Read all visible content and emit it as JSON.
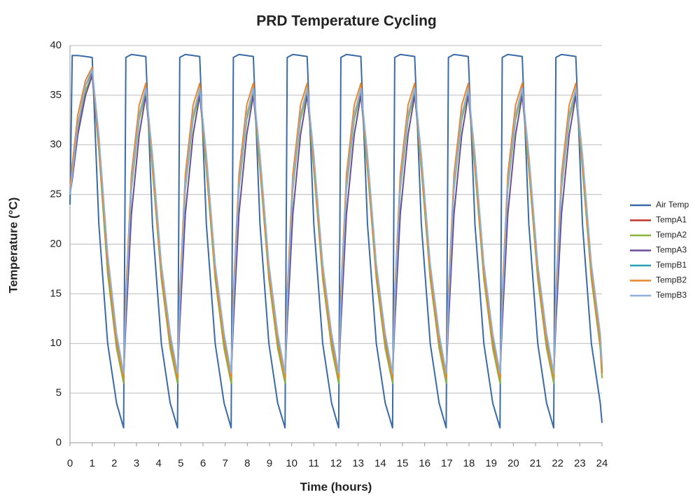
{
  "chart_data": {
    "type": "line",
    "title": "PRD Temperature Cycling",
    "x_label": "Time (hours)",
    "y_label": "Temperature (°C)",
    "xlim": [
      0,
      24
    ],
    "xticks": [
      0,
      1,
      2,
      3,
      4,
      5,
      6,
      7,
      8,
      9,
      10,
      11,
      12,
      13,
      14,
      15,
      16,
      17,
      18,
      19,
      20,
      21,
      22,
      23,
      24
    ],
    "ylim": [
      0,
      40
    ],
    "yticks": [
      0,
      5,
      10,
      15,
      20,
      25,
      30,
      35,
      40
    ],
    "grid": true,
    "legend": "right",
    "x": [
      0,
      0.1,
      0.35,
      0.7,
      1,
      1.3,
      1.7,
      2.1,
      2.42,
      2.52,
      2.77,
      3.12,
      3.42,
      3.72,
      4.12,
      4.52,
      4.85,
      4.95,
      5.2,
      5.55,
      5.85,
      6.15,
      6.55,
      6.95,
      7.27,
      7.37,
      7.62,
      7.97,
      8.27,
      8.57,
      8.97,
      9.37,
      9.7,
      9.8,
      10.05,
      10.4,
      10.7,
      11,
      11.4,
      11.8,
      12.12,
      12.22,
      12.47,
      12.82,
      13.12,
      13.42,
      13.82,
      14.22,
      14.55,
      14.65,
      14.9,
      15.25,
      15.55,
      15.85,
      16.25,
      16.65,
      16.97,
      17.07,
      17.32,
      17.67,
      17.97,
      18.27,
      18.67,
      19.07,
      19.4,
      19.5,
      19.75,
      20.1,
      20.4,
      20.7,
      21.1,
      21.5,
      21.82,
      21.92,
      22.17,
      22.52,
      22.82,
      23.12,
      23.52,
      23.92,
      24
    ],
    "series": [
      {
        "name": "Air Temp",
        "color": "#3a6aa8",
        "values": [
          24,
          39,
          39,
          38.9,
          38.8,
          22,
          10,
          4,
          1.5,
          38.8,
          39.1,
          39,
          38.9,
          22,
          10,
          4,
          1.5,
          38.8,
          39.1,
          39,
          38.9,
          22,
          10,
          4,
          1.5,
          38.8,
          39.1,
          39,
          38.9,
          22,
          10,
          4,
          1.5,
          38.8,
          39.1,
          39,
          38.9,
          22,
          10,
          4,
          1.5,
          38.8,
          39.1,
          39,
          38.9,
          22,
          10,
          4,
          1.5,
          38.8,
          39.1,
          39,
          38.9,
          22,
          10,
          4,
          1.5,
          38.8,
          39.1,
          39,
          38.9,
          22,
          10,
          4,
          1.5,
          38.8,
          39.1,
          39,
          38.9,
          22,
          10,
          4,
          1.5,
          38.8,
          39.1,
          39,
          38.9,
          22,
          10,
          4,
          2
        ]
      },
      {
        "name": "TempA1",
        "color": "#c0392b",
        "values": [
          25,
          27,
          32,
          36,
          37.3,
          30,
          18,
          10,
          6.5,
          14,
          26,
          33,
          35.5,
          28,
          17,
          10,
          6.5,
          14,
          26,
          33,
          35.5,
          28,
          17,
          10,
          6.5,
          14,
          26,
          33,
          35.5,
          28,
          17,
          10,
          6.5,
          14,
          26,
          33,
          35.5,
          28,
          17,
          10,
          6.5,
          14,
          26,
          33,
          35.5,
          28,
          17,
          10,
          6.5,
          14,
          26,
          33,
          35.5,
          28,
          17,
          10,
          6.5,
          14,
          26,
          33,
          35.5,
          28,
          17,
          10,
          6.5,
          14,
          26,
          33,
          35.5,
          28,
          17,
          10,
          6.5,
          14,
          26,
          33,
          35.5,
          28,
          17,
          10,
          7
        ]
      },
      {
        "name": "TempA2",
        "color": "#8db33a",
        "values": [
          25,
          27,
          31.5,
          35.5,
          37,
          29.5,
          17,
          9.5,
          6,
          13.5,
          25.5,
          32.5,
          35.3,
          27.5,
          16.5,
          9.5,
          6,
          13.5,
          25.5,
          32.5,
          35.3,
          27.5,
          16.5,
          9.5,
          6,
          13.5,
          25.5,
          32.5,
          35.3,
          27.5,
          16.5,
          9.5,
          6,
          13.5,
          25.5,
          32.5,
          35.3,
          27.5,
          16.5,
          9.5,
          6,
          13.5,
          25.5,
          32.5,
          35.3,
          27.5,
          16.5,
          9.5,
          6,
          13.5,
          25.5,
          32.5,
          35.3,
          27.5,
          16.5,
          9.5,
          6,
          13.5,
          25.5,
          32.5,
          35.3,
          27.5,
          16.5,
          9.5,
          6,
          13.5,
          25.5,
          32.5,
          35.3,
          27.5,
          16.5,
          9.5,
          6,
          13.5,
          25.5,
          32.5,
          35.3,
          27.5,
          16.5,
          9.5,
          6.5
        ]
      },
      {
        "name": "TempA3",
        "color": "#6a4c9c",
        "values": [
          25,
          26.5,
          31,
          35,
          37,
          30,
          18,
          10,
          6.8,
          12,
          23,
          31,
          35,
          28.5,
          17.5,
          10.5,
          6.8,
          12,
          23,
          31,
          35,
          28.5,
          17.5,
          10.5,
          6.8,
          12,
          23,
          31,
          35,
          28.5,
          17.5,
          10.5,
          6.8,
          12,
          23,
          31,
          35,
          28.5,
          17.5,
          10.5,
          6.8,
          12,
          23,
          31,
          35,
          28.5,
          17.5,
          10.5,
          6.8,
          12,
          23,
          31,
          35,
          28.5,
          17.5,
          10.5,
          6.8,
          12,
          23,
          31,
          35,
          28.5,
          17.5,
          10.5,
          6.8,
          12,
          23,
          31,
          35,
          28.5,
          17.5,
          10.5,
          6.8,
          12,
          23,
          31,
          35,
          28.5,
          17.5,
          10.5,
          7
        ]
      },
      {
        "name": "TempB1",
        "color": "#2aa0b8",
        "values": [
          25,
          27,
          32,
          36,
          37.4,
          30.5,
          18.5,
          10.5,
          7,
          14,
          26,
          33,
          35.6,
          28.5,
          17.5,
          10.5,
          7,
          14,
          26,
          33,
          35.6,
          28.5,
          17.5,
          10.5,
          7,
          14,
          26,
          33,
          35.6,
          28.5,
          17.5,
          10.5,
          7,
          14,
          26,
          33,
          35.6,
          28.5,
          17.5,
          10.5,
          7,
          14,
          26,
          33,
          35.6,
          28.5,
          17.5,
          10.5,
          7,
          14,
          26,
          33,
          35.6,
          28.5,
          17.5,
          10.5,
          7,
          14,
          26,
          33,
          35.6,
          28.5,
          17.5,
          10.5,
          7,
          14,
          26,
          33,
          35.6,
          28.5,
          17.5,
          10.5,
          7,
          14,
          26,
          33,
          35.6,
          28.5,
          17.5,
          10.5,
          7.5
        ]
      },
      {
        "name": "TempB2",
        "color": "#e8862a",
        "values": [
          25.5,
          28,
          33,
          36.5,
          37.8,
          30,
          18,
          10,
          6.5,
          15,
          27,
          34,
          36.2,
          28,
          17,
          10,
          6.5,
          15,
          27,
          34,
          36.2,
          28,
          17,
          10,
          6.5,
          15,
          27,
          34,
          36.2,
          28,
          17,
          10,
          6.5,
          15,
          27,
          34,
          36.2,
          28,
          17,
          10,
          6.5,
          15,
          27,
          34,
          36.2,
          28,
          17,
          10,
          6.5,
          15,
          27,
          34,
          36.2,
          28,
          17,
          10,
          6.5,
          15,
          27,
          34,
          36.2,
          28,
          17,
          10,
          6.5,
          15,
          27,
          34,
          36.2,
          28,
          17,
          10,
          6.5,
          15,
          27,
          34,
          36.2,
          28,
          17,
          10,
          7
        ]
      },
      {
        "name": "TempB3",
        "color": "#8fb0dc",
        "values": [
          25,
          27,
          32,
          36,
          37.6,
          31,
          19,
          11,
          7,
          14,
          26,
          33,
          35.7,
          29,
          18,
          11,
          7,
          14,
          26,
          33,
          35.7,
          29,
          18,
          11,
          7,
          14,
          26,
          33,
          35.7,
          29,
          18,
          11,
          7,
          14,
          26,
          33,
          35.7,
          29,
          18,
          11,
          7,
          14,
          26,
          33,
          35.7,
          29,
          18,
          11,
          7,
          14,
          26,
          33,
          35.7,
          29,
          18,
          11,
          7,
          14,
          26,
          33,
          35.7,
          29,
          18,
          11,
          7,
          14,
          26,
          33,
          35.7,
          29,
          18,
          11,
          7,
          14,
          26,
          33,
          35.7,
          29,
          18,
          11,
          8
        ]
      }
    ]
  }
}
